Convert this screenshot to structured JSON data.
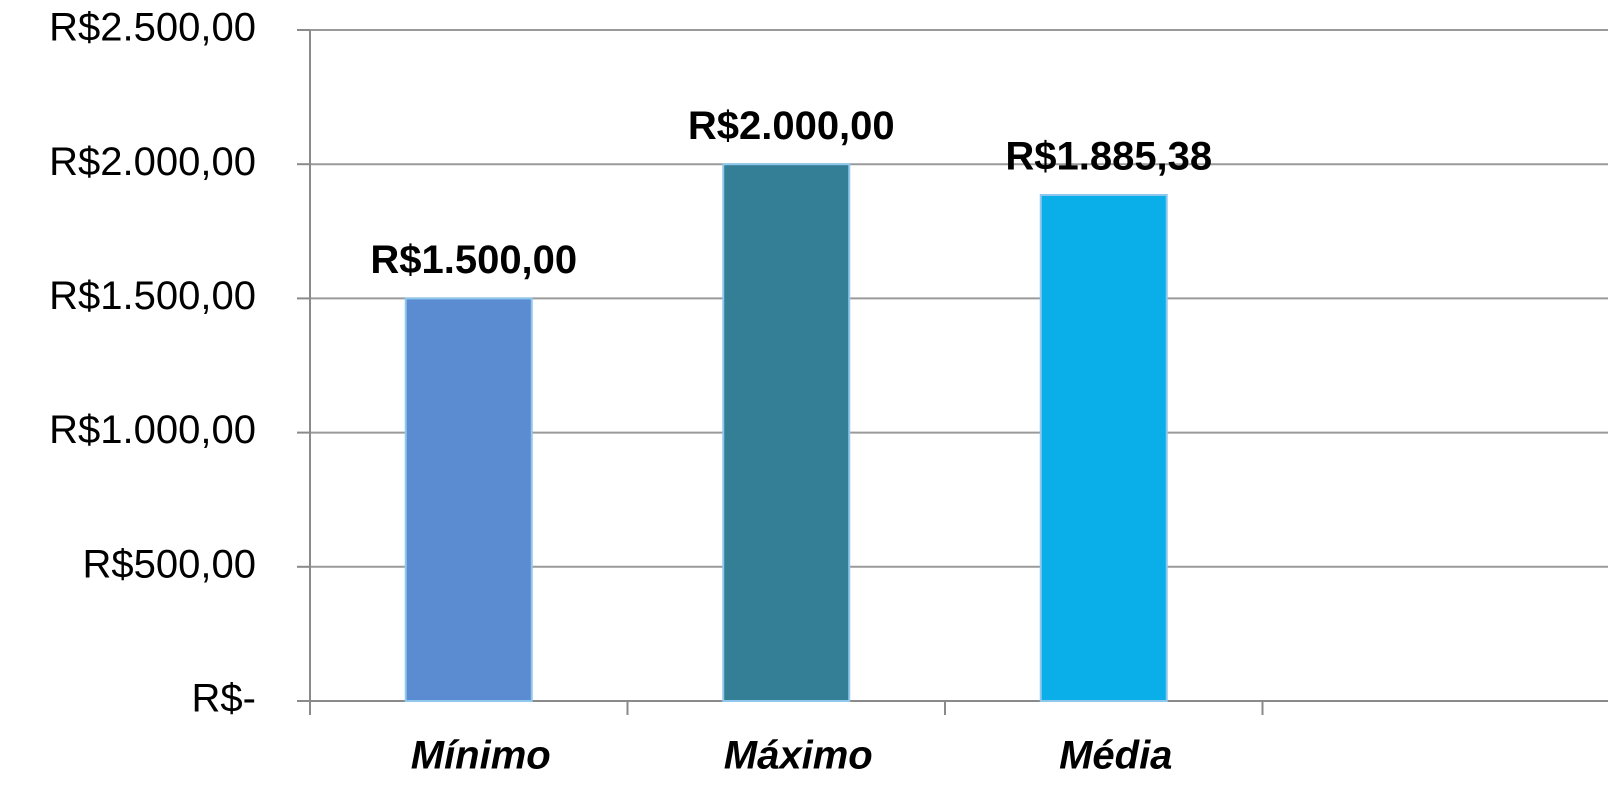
{
  "chart_data": {
    "type": "bar",
    "categories": [
      "Mínimo",
      "Máximo",
      "Média"
    ],
    "values": [
      1500,
      2000,
      1885.38
    ],
    "value_labels": [
      "R$1.500,00",
      "R$2.000,00",
      "R$1.885,38"
    ],
    "colors": [
      "#5b8bd0",
      "#347f96",
      "#0aaee8"
    ],
    "ylim": [
      0,
      2500
    ],
    "yticks": [
      {
        "value": 0,
        "label": "R$-"
      },
      {
        "value": 500,
        "label": "R$500,00"
      },
      {
        "value": 1000,
        "label": "R$1.000,00"
      },
      {
        "value": 1500,
        "label": "R$1.500,00"
      },
      {
        "value": 2000,
        "label": "R$2.000,00"
      },
      {
        "value": 2500,
        "label": "R$2.500,00"
      }
    ],
    "grid": true
  }
}
